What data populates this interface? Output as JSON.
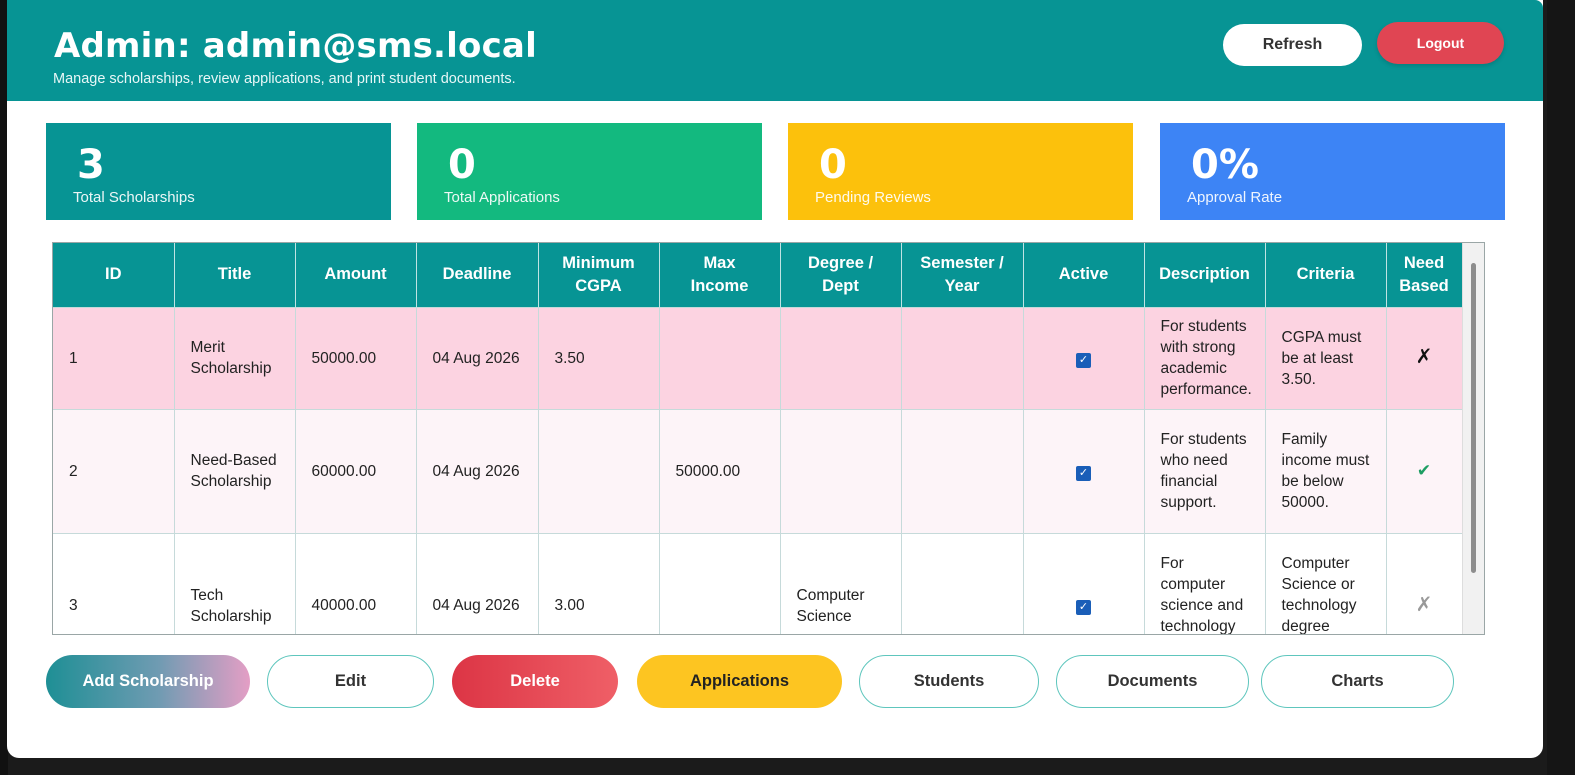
{
  "header": {
    "title": "Admin: admin@sms.local",
    "subtitle": "Manage scholarships, review applications, and print student documents.",
    "refresh_label": "Refresh",
    "logout_label": "Logout"
  },
  "stats": [
    {
      "value": "3",
      "label": "Total Scholarships",
      "color": "#079494"
    },
    {
      "value": "0",
      "label": "Total Applications",
      "color": "#13b97f"
    },
    {
      "value": "0",
      "label": "Pending Reviews",
      "color": "#fcc10c"
    },
    {
      "value": "0%",
      "label": "Approval Rate",
      "color": "#3d84f5"
    }
  ],
  "table": {
    "columns": [
      "ID",
      "Title",
      "Amount",
      "Deadline",
      "Minimum CGPA",
      "Max Income",
      "Degree / Dept",
      "Semester / Year",
      "Active",
      "Description",
      "Criteria",
      "Need Based"
    ],
    "rows": [
      {
        "id": "1",
        "title": "Merit Scholarship",
        "amount": "50000.00",
        "deadline": "04 Aug 2026",
        "min_cgpa": "3.50",
        "max_income": "",
        "degree": "",
        "semester": "",
        "active": true,
        "description": "For students with strong academic performance.",
        "criteria": "CGPA must be at least 3.50.",
        "need_based": false
      },
      {
        "id": "2",
        "title": "Need-Based Scholarship",
        "amount": "60000.00",
        "deadline": "04 Aug 2026",
        "min_cgpa": "",
        "max_income": "50000.00",
        "degree": "",
        "semester": "",
        "active": true,
        "description": "For students who need financial support.",
        "criteria": "Family income must be below 50000.",
        "need_based": true
      },
      {
        "id": "3",
        "title": "Tech Scholarship",
        "amount": "40000.00",
        "deadline": "04 Aug 2026",
        "min_cgpa": "3.00",
        "max_income": "",
        "degree": "Computer Science",
        "semester": "",
        "active": true,
        "description": "For computer science and technology students.",
        "criteria": "Computer Science or technology degree students.",
        "need_based": false
      }
    ]
  },
  "actions": {
    "add_scholarship": "Add Scholarship",
    "edit": "Edit",
    "delete": "Delete",
    "applications": "Applications",
    "students": "Students",
    "documents": "Documents",
    "charts": "Charts"
  },
  "icons": {
    "checkbox_checked": "checkbox-checked-icon",
    "cross": "cross-icon",
    "check": "check-icon"
  },
  "colors": {
    "primary": "#079494",
    "danger": "#e04553",
    "warning": "#fcc10c",
    "row_highlight": "#fcd3e1"
  }
}
